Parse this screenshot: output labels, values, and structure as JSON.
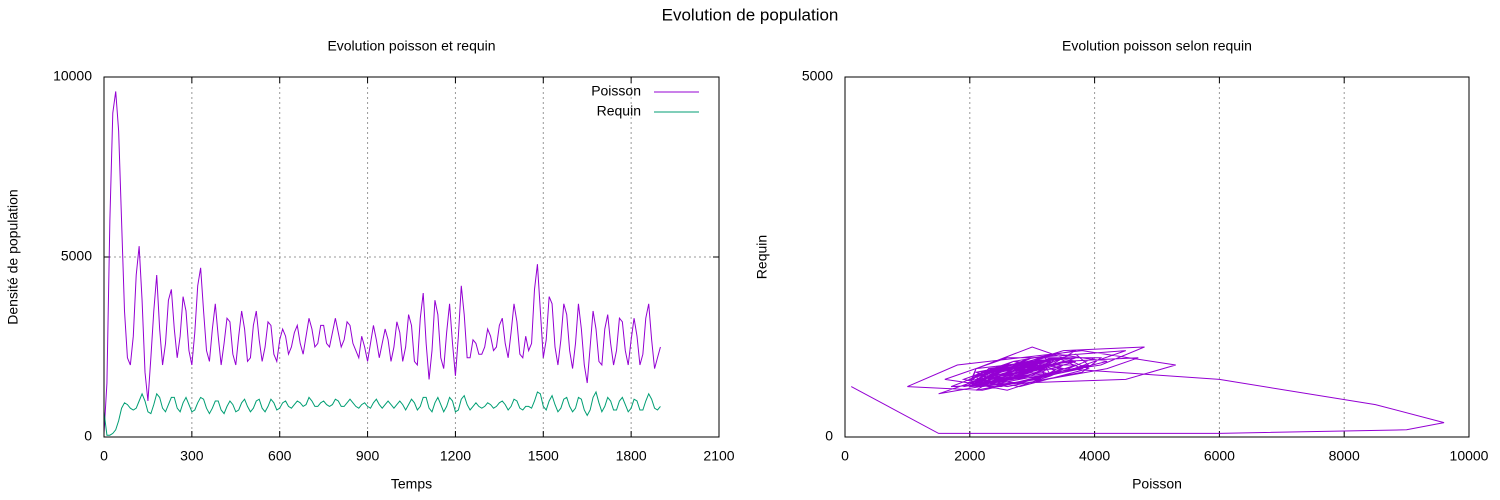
{
  "title": "Evolution de population",
  "chart_data": [
    {
      "type": "line",
      "title": "Evolution poisson et requin",
      "xlabel": "Temps",
      "ylabel": "Densité de population",
      "x": [
        0,
        10,
        20,
        30,
        40,
        50,
        60,
        70,
        80,
        90,
        100,
        110,
        120,
        130,
        140,
        150,
        160,
        170,
        180,
        190,
        200,
        210,
        220,
        230,
        240,
        250,
        260,
        270,
        280,
        290,
        300,
        310,
        320,
        330,
        340,
        350,
        360,
        370,
        380,
        390,
        400,
        410,
        420,
        430,
        440,
        450,
        460,
        470,
        480,
        490,
        500,
        510,
        520,
        530,
        540,
        550,
        560,
        570,
        580,
        590,
        600,
        610,
        620,
        630,
        640,
        650,
        660,
        670,
        680,
        690,
        700,
        710,
        720,
        730,
        740,
        750,
        760,
        770,
        780,
        790,
        800,
        810,
        820,
        830,
        840,
        850,
        860,
        870,
        880,
        890,
        900,
        910,
        920,
        930,
        940,
        950,
        960,
        970,
        980,
        990,
        1000,
        1010,
        1020,
        1030,
        1040,
        1050,
        1060,
        1070,
        1080,
        1090,
        1100,
        1110,
        1120,
        1130,
        1140,
        1150,
        1160,
        1170,
        1180,
        1190,
        1200,
        1210,
        1220,
        1230,
        1240,
        1250,
        1260,
        1270,
        1280,
        1290,
        1300,
        1310,
        1320,
        1330,
        1340,
        1350,
        1360,
        1370,
        1380,
        1390,
        1400,
        1410,
        1420,
        1430,
        1440,
        1450,
        1460,
        1470,
        1480,
        1490,
        1500,
        1510,
        1520,
        1530,
        1540,
        1550,
        1560,
        1570,
        1580,
        1590,
        1600,
        1610,
        1620,
        1630,
        1640,
        1650,
        1660,
        1670,
        1680,
        1690,
        1700,
        1710,
        1720,
        1730,
        1740,
        1750,
        1760,
        1770,
        1780,
        1790,
        1800,
        1810,
        1820,
        1830,
        1840,
        1850,
        1860,
        1870,
        1880,
        1890,
        1900
      ],
      "series": [
        {
          "name": "Poisson",
          "color": "#9400d3",
          "values": [
            100,
            1500,
            6000,
            9000,
            9600,
            8500,
            6000,
            3500,
            2200,
            2000,
            2800,
            4500,
            5300,
            3800,
            1800,
            1000,
            2200,
            3500,
            4500,
            3000,
            2000,
            2600,
            3800,
            4100,
            3000,
            2200,
            2800,
            3900,
            3500,
            2400,
            2000,
            2900,
            4200,
            4700,
            3500,
            2400,
            2100,
            3000,
            3700,
            2800,
            2000,
            2600,
            3300,
            3200,
            2300,
            2000,
            2800,
            3500,
            3000,
            2100,
            2200,
            3100,
            3500,
            2700,
            2100,
            2500,
            3200,
            3100,
            2300,
            2100,
            2700,
            3000,
            2800,
            2300,
            2500,
            2900,
            3100,
            2600,
            2300,
            2800,
            3300,
            3000,
            2500,
            2600,
            3100,
            3100,
            2600,
            2500,
            2900,
            3300,
            2900,
            2500,
            2700,
            3200,
            3100,
            2600,
            2400,
            2200,
            2800,
            2500,
            2100,
            2600,
            3100,
            2700,
            2200,
            2600,
            3000,
            2700,
            2100,
            2500,
            3200,
            2900,
            2100,
            2500,
            3400,
            3100,
            2100,
            2000,
            3300,
            4000,
            2600,
            1600,
            2400,
            3800,
            3400,
            2200,
            1900,
            2900,
            3700,
            2600,
            1700,
            2800,
            4200,
            3400,
            2200,
            2200,
            2700,
            2600,
            2300,
            2300,
            2500,
            3000,
            2800,
            2400,
            2500,
            3100,
            3300,
            2600,
            2200,
            2900,
            3700,
            3200,
            2300,
            2200,
            2800,
            2400,
            2600,
            4100,
            4800,
            3500,
            2200,
            2700,
            3900,
            3700,
            2500,
            2000,
            2700,
            3700,
            3400,
            2400,
            1900,
            2600,
            3700,
            3000,
            2000,
            1500,
            2500,
            3500,
            3000,
            2100,
            2000,
            3000,
            3400,
            2600,
            2000,
            2400,
            3300,
            3200,
            2400,
            2000,
            2700,
            3300,
            2800,
            2000,
            2300,
            3300,
            3700,
            2700,
            1900,
            2200,
            2500
          ]
        },
        {
          "name": "Requin",
          "color": "#009e73",
          "values": [
            700,
            50,
            50,
            100,
            200,
            450,
            800,
            950,
            900,
            800,
            750,
            800,
            1000,
            1200,
            1000,
            700,
            650,
            900,
            1200,
            1100,
            800,
            700,
            900,
            1100,
            1100,
            800,
            700,
            950,
            1100,
            900,
            700,
            750,
            950,
            1100,
            1050,
            800,
            650,
            800,
            1000,
            1000,
            750,
            650,
            850,
            1000,
            900,
            700,
            750,
            950,
            1050,
            850,
            700,
            800,
            1000,
            1050,
            800,
            700,
            850,
            1050,
            950,
            750,
            800,
            950,
            1000,
            850,
            800,
            900,
            1000,
            950,
            850,
            900,
            1100,
            1000,
            850,
            850,
            950,
            1000,
            900,
            850,
            900,
            1050,
            1000,
            850,
            850,
            950,
            1050,
            950,
            850,
            800,
            900,
            950,
            850,
            800,
            950,
            1050,
            900,
            800,
            900,
            1000,
            900,
            800,
            900,
            1000,
            900,
            750,
            900,
            1050,
            950,
            750,
            850,
            1100,
            1100,
            800,
            700,
            950,
            1100,
            900,
            700,
            850,
            1100,
            1000,
            700,
            750,
            1050,
            1150,
            900,
            750,
            850,
            950,
            850,
            800,
            850,
            950,
            900,
            800,
            850,
            950,
            1000,
            900,
            750,
            850,
            1050,
            1000,
            800,
            750,
            850,
            850,
            800,
            1000,
            1250,
            1200,
            850,
            750,
            1000,
            1150,
            900,
            700,
            800,
            1050,
            1100,
            850,
            700,
            800,
            1100,
            1050,
            750,
            600,
            750,
            1100,
            1250,
            950,
            700,
            850,
            1100,
            1000,
            750,
            750,
            1000,
            1100,
            900,
            700,
            800,
            1050,
            1000,
            750,
            750,
            1000,
            1200,
            1050,
            800,
            750,
            850
          ]
        }
      ],
      "xlim": [
        0,
        2100
      ],
      "xticks": [
        0,
        300,
        600,
        900,
        1200,
        1500,
        1800,
        2100
      ],
      "ylim": [
        0,
        10000
      ],
      "yticks": [
        0,
        5000,
        10000
      ],
      "grid": true,
      "legend": "top-right"
    },
    {
      "type": "line",
      "title": "Evolution poisson selon requin",
      "xlabel": "Poisson",
      "ylabel": "Requin",
      "color": "#9400d3",
      "x": [
        100,
        1500,
        6000,
        9000,
        9600,
        8500,
        6000,
        3500,
        2200,
        2000,
        2800,
        4500,
        5300,
        3800,
        1800,
        1000,
        2200,
        3500,
        4500,
        3000,
        2000,
        2600,
        3800,
        4100,
        3000,
        2200,
        2800,
        3900,
        3500,
        2400,
        2000,
        2900,
        4200,
        4700,
        3500,
        2400,
        2100,
        3000,
        3700,
        2800,
        2000,
        2600,
        3300,
        3200,
        2300,
        2000,
        2800,
        3500,
        3000,
        2100,
        2200,
        3100,
        3500,
        2700,
        2100,
        2500,
        3200,
        3100,
        2300,
        2100,
        2700,
        3000,
        2800,
        2300,
        2500,
        2900,
        3100,
        2600,
        2300,
        2800,
        3300,
        3000,
        2500,
        2600,
        3100,
        3100,
        2600,
        2500,
        2900,
        3300,
        2900,
        2500,
        2700,
        3200,
        3100,
        2600,
        2400,
        2200,
        2800,
        2500,
        2100,
        2600,
        3100,
        2700,
        2200,
        2600,
        3000,
        2700,
        2100,
        2500,
        3200,
        2900,
        2100,
        2500,
        3400,
        3100,
        2100,
        2000,
        3300,
        4000,
        2600,
        1600,
        2400,
        3800,
        3400,
        2200,
        1900,
        2900,
        3700,
        2600,
        1700,
        2800,
        4200,
        3400,
        2200,
        2200,
        2700,
        2600,
        2300,
        2300,
        2500,
        3000,
        2800,
        2400,
        2500,
        3100,
        3300,
        2600,
        2200,
        2900,
        3700,
        3200,
        2300,
        2200,
        2800,
        2400,
        2600,
        4100,
        4800,
        3500,
        2200,
        2700,
        3900,
        3700,
        2500,
        2000,
        2700,
        3700,
        3400,
        2400,
        1900,
        2600,
        3700,
        3000,
        2000,
        1500,
        2500,
        3500,
        3000,
        2100,
        2000,
        3000,
        3400,
        2600,
        2000,
        2400,
        3300,
        3200,
        2400,
        2000,
        2700,
        3300,
        2800,
        2000,
        2300,
        3300,
        3700,
        2700,
        1900,
        2200,
        2500
      ],
      "values": [
        700,
        50,
        50,
        100,
        200,
        450,
        800,
        950,
        900,
        800,
        750,
        800,
        1000,
        1200,
        1000,
        700,
        650,
        900,
        1200,
        1100,
        800,
        700,
        900,
        1100,
        1100,
        800,
        700,
        950,
        1100,
        900,
        700,
        750,
        950,
        1100,
        1050,
        800,
        650,
        800,
        1000,
        1000,
        750,
        650,
        850,
        1000,
        900,
        700,
        750,
        950,
        1050,
        850,
        700,
        800,
        1000,
        1050,
        800,
        700,
        850,
        1050,
        950,
        750,
        800,
        950,
        1000,
        850,
        800,
        900,
        1000,
        950,
        850,
        900,
        1100,
        1000,
        850,
        850,
        950,
        1000,
        900,
        850,
        900,
        1050,
        1000,
        850,
        850,
        950,
        1050,
        950,
        850,
        800,
        900,
        950,
        850,
        800,
        950,
        1050,
        900,
        800,
        900,
        1000,
        900,
        800,
        900,
        1000,
        900,
        750,
        900,
        1050,
        950,
        750,
        850,
        1100,
        1100,
        800,
        700,
        950,
        1100,
        900,
        700,
        850,
        1100,
        1000,
        700,
        750,
        1050,
        1150,
        900,
        750,
        850,
        950,
        850,
        800,
        850,
        950,
        900,
        800,
        850,
        950,
        1000,
        900,
        750,
        850,
        1050,
        1000,
        800,
        750,
        850,
        850,
        800,
        1000,
        1250,
        1200,
        850,
        750,
        1000,
        1150,
        900,
        700,
        800,
        1050,
        1100,
        850,
        700,
        800,
        1100,
        1050,
        750,
        600,
        750,
        1100,
        1250,
        950,
        700,
        850,
        1100,
        1000,
        750,
        750,
        1000,
        1100,
        900,
        700,
        800,
        1050,
        1000,
        750,
        750,
        1000,
        1200,
        1050,
        800,
        750,
        850
      ],
      "xlim": [
        0,
        10000
      ],
      "xticks": [
        0,
        2000,
        4000,
        6000,
        8000,
        10000
      ],
      "ylim": [
        0,
        5000
      ],
      "yticks": [
        0,
        5000
      ],
      "grid": true
    }
  ]
}
